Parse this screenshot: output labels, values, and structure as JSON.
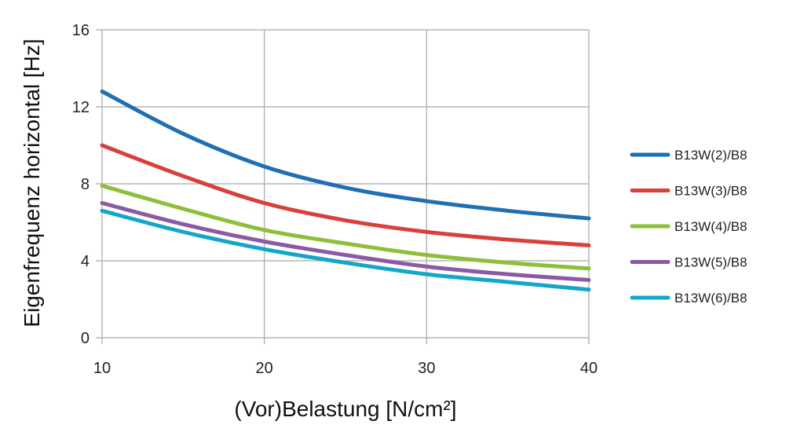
{
  "chart_data": {
    "type": "line",
    "title": "",
    "xlabel": "(Vor)Belastung [N/cm²]",
    "ylabel": "Eigenfrequenz horizontal [Hz]",
    "xlim": [
      10,
      40
    ],
    "ylim": [
      0,
      16
    ],
    "xticks": [
      "10",
      "20",
      "30",
      "40"
    ],
    "yticks": [
      "0",
      "4",
      "8",
      "12",
      "16"
    ],
    "grid": true,
    "legend_position": "right",
    "x": [
      10,
      15,
      20,
      25,
      30,
      35,
      40
    ],
    "series": [
      {
        "name": "B13W(2)/B8",
        "color": "#1f6fb2",
        "values": [
          12.8,
          10.6,
          8.9,
          7.8,
          7.1,
          6.6,
          6.2
        ]
      },
      {
        "name": "B13W(3)/B8",
        "color": "#d8403a",
        "values": [
          10.0,
          8.4,
          7.0,
          6.1,
          5.5,
          5.1,
          4.8
        ]
      },
      {
        "name": "B13W(4)/B8",
        "color": "#8dbf3b",
        "values": [
          7.9,
          6.7,
          5.6,
          4.9,
          4.3,
          3.9,
          3.6
        ]
      },
      {
        "name": "B13W(5)/B8",
        "color": "#8b5aa3",
        "values": [
          7.0,
          5.9,
          5.0,
          4.3,
          3.7,
          3.3,
          3.0
        ]
      },
      {
        "name": "B13W(6)/B8",
        "color": "#14a6c7",
        "values": [
          6.6,
          5.5,
          4.6,
          3.9,
          3.3,
          2.9,
          2.5
        ]
      }
    ]
  }
}
